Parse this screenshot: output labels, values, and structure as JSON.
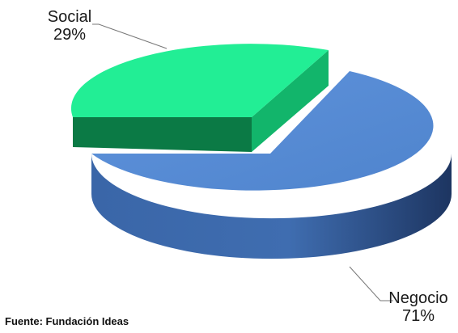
{
  "chart_data": {
    "type": "pie",
    "categories": [
      "Social",
      "Negocio"
    ],
    "values": [
      29,
      71
    ],
    "value_labels": [
      "29%",
      "71%"
    ],
    "colors": [
      "#1EE28F",
      "#5B8FD6"
    ],
    "style": "3d-exploded"
  },
  "source": "Fuente: Fundación Ideas"
}
